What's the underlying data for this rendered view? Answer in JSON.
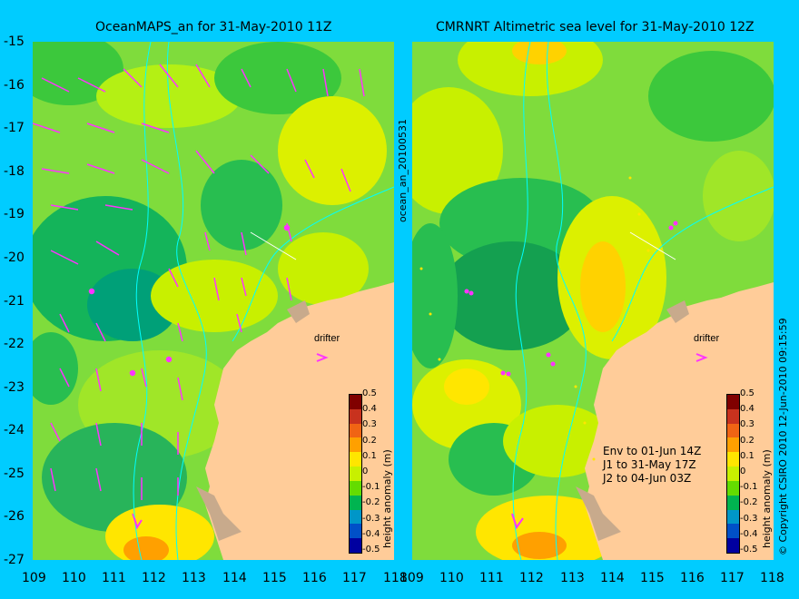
{
  "panel_left": {
    "title": "OceanMAPS_an for 31-May-2010 11Z",
    "side_label": "ocean_an_20100531"
  },
  "panel_right": {
    "title": "CMRNRT Altimetric sea level  for 31-May-2010 12Z",
    "notes": [
      "Env to 01-Jun 14Z",
      "J1 to 31-May 17Z",
      "J2 to 04-Jun 03Z"
    ],
    "side_label": "© Copyright CSIRO 2010   12-Jun-2010 09:15:59"
  },
  "drifter_label": "drifter",
  "lat_ticks": [
    "-15",
    "-16",
    "-17",
    "-18",
    "-19",
    "-20",
    "-21",
    "-22",
    "-23",
    "-24",
    "-25",
    "-26",
    "-27"
  ],
  "lon_ticks": [
    "109",
    "110",
    "111",
    "112",
    "113",
    "114",
    "115",
    "116",
    "117",
    "118"
  ],
  "colorbar": {
    "label": "height anomaly (m)",
    "ticks": [
      "0.5",
      "0.4",
      "0.3",
      "0.2",
      "0.1",
      "0",
      "-0.1",
      "-0.2",
      "-0.3",
      "-0.4",
      "-0.5"
    ],
    "colors": [
      "#800000",
      "#c8321e",
      "#f06414",
      "#ffa000",
      "#ffe600",
      "#c8f000",
      "#64dc00",
      "#00b450",
      "#0096c8",
      "#0050c8",
      "#0000a0"
    ]
  },
  "colors": {
    "background": "#00ccff",
    "land": "#ffcc99",
    "shelf": "#c8aa8c",
    "arrows": "#ff33ff",
    "contour": "#00ffff"
  }
}
